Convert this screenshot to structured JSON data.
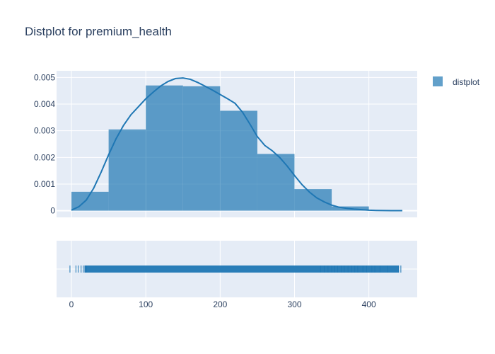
{
  "chart_data": {
    "type": "histogram",
    "title": "Distplot for premium_health",
    "legend": {
      "position": "top-right",
      "entries": [
        "distplot"
      ]
    },
    "colors": {
      "bar": "#1f77b4",
      "curve": "#1f77b4",
      "plot_bg": "#e5ecf6",
      "grid": "#ffffff",
      "text": "#2a3f5f"
    },
    "grid": true,
    "x_axis": {
      "range": [
        -20,
        465
      ],
      "ticks": [
        0,
        100,
        200,
        300,
        400
      ]
    },
    "y_axis": {
      "range": [
        -0.00025,
        0.00525
      ],
      "ticks": [
        0,
        0.001,
        0.002,
        0.003,
        0.004,
        0.005
      ],
      "tick_labels": [
        "0",
        "0.001",
        "0.002",
        "0.003",
        "0.004",
        "0.005"
      ]
    },
    "histogram": {
      "name": "distplot",
      "bin_edges": [
        0,
        50,
        100,
        150,
        200,
        250,
        300,
        350,
        400
      ],
      "densities": [
        0.00071,
        0.00305,
        0.0047,
        0.00467,
        0.00375,
        0.00213,
        0.00081,
        0.00016
      ]
    },
    "kde": {
      "x": [
        0,
        10,
        20,
        30,
        40,
        50,
        60,
        70,
        80,
        90,
        100,
        110,
        120,
        130,
        140,
        150,
        160,
        170,
        180,
        190,
        200,
        210,
        220,
        230,
        240,
        250,
        260,
        270,
        280,
        290,
        300,
        310,
        320,
        330,
        340,
        350,
        360,
        370,
        380,
        390,
        400,
        410,
        420,
        430,
        440,
        445
      ],
      "y": [
        2e-05,
        0.00015,
        0.0004,
        0.00085,
        0.00145,
        0.0021,
        0.0027,
        0.0032,
        0.0036,
        0.0039,
        0.0042,
        0.00445,
        0.00468,
        0.00485,
        0.00496,
        0.00498,
        0.00493,
        0.00481,
        0.00467,
        0.00452,
        0.00436,
        0.0042,
        0.00403,
        0.0037,
        0.00325,
        0.00278,
        0.00245,
        0.00225,
        0.002,
        0.00168,
        0.00132,
        0.00098,
        0.0007,
        0.00048,
        0.00033,
        0.00021,
        0.00013,
        9e-05,
        6e-05,
        4e-05,
        2e-05,
        1e-05,
        5e-06,
        3e-06,
        2e-06,
        1e-06
      ]
    },
    "rug": {
      "dense_range": [
        18,
        440
      ],
      "values": [
        -2,
        6,
        9,
        13,
        16,
        18,
        20,
        335,
        340,
        345,
        350,
        354,
        358,
        363,
        367,
        372,
        377,
        381,
        385,
        392,
        397,
        404,
        408,
        415,
        425,
        440,
        443
      ]
    }
  }
}
